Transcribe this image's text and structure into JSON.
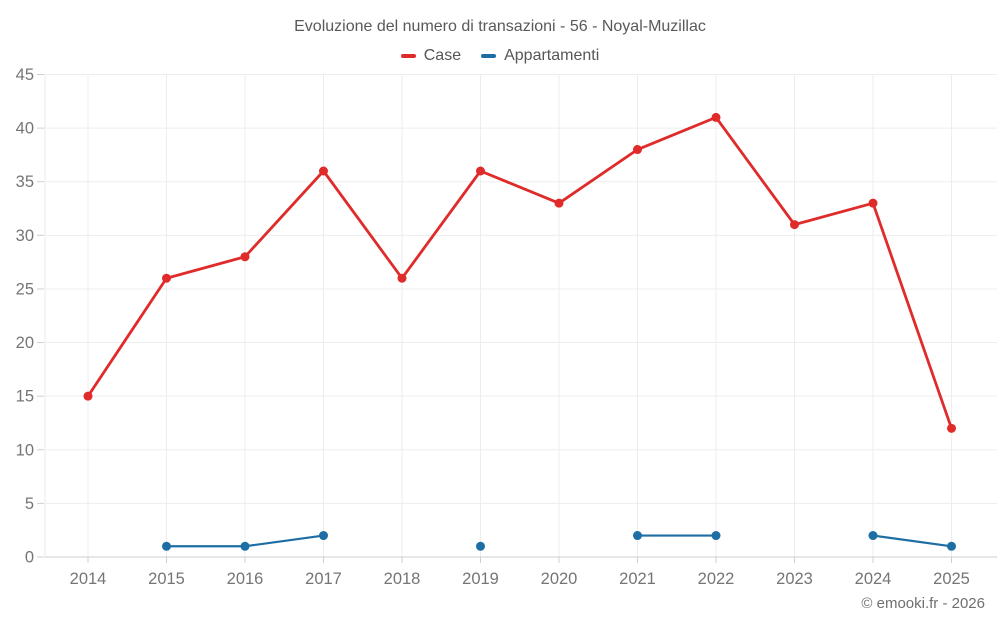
{
  "title": "Evoluzione del numero di transazioni - 56 - Noyal-Muzillac",
  "legend": {
    "items": [
      {
        "label": "Case",
        "color": "#e02b2b"
      },
      {
        "label": "Appartamenti",
        "color": "#1c6ea4"
      }
    ]
  },
  "attribution": "© emooki.fr - 2026",
  "colors": {
    "case_red": "#e02b2b",
    "appartamenti_blue": "#1c6ea4",
    "gridline": "#ededed",
    "axis_line": "#cfcfcf",
    "tick_label": "#757575"
  },
  "chart_data": {
    "type": "line",
    "title": "Evoluzione del numero di transazioni - 56 - Noyal-Muzillac",
    "x": [
      2014,
      2015,
      2016,
      2017,
      2018,
      2019,
      2020,
      2021,
      2022,
      2023,
      2024,
      2025
    ],
    "series": [
      {
        "name": "Case",
        "color": "#e02b2b",
        "values": [
          15,
          26,
          28,
          36,
          26,
          36,
          33,
          38,
          41,
          31,
          33,
          12
        ]
      },
      {
        "name": "Appartamenti",
        "color": "#1c6ea4",
        "values": [
          null,
          1,
          1,
          2,
          null,
          1,
          null,
          2,
          2,
          null,
          2,
          1
        ]
      }
    ],
    "xlabel": "",
    "ylabel": "",
    "ylim": [
      0,
      45
    ],
    "ytick_step": 5,
    "grid": true,
    "legend_position": "top"
  }
}
